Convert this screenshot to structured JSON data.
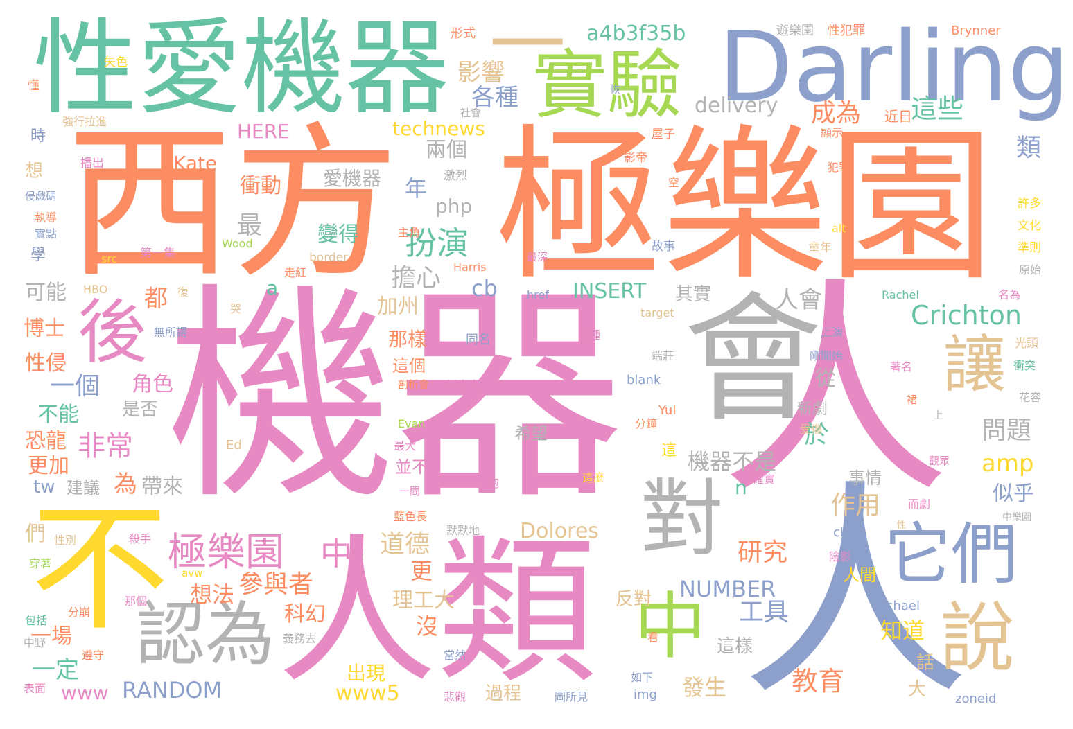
{
  "palette": {
    "green": "#66c2a5",
    "orange": "#fc8d62",
    "blue": "#8da0cb",
    "pink": "#e78ac3",
    "lime": "#a6d854",
    "yellow": "#ffd92f",
    "tan": "#e5c494",
    "gray": "#b3b3b3"
  },
  "words": {
    "w_jiqi": "機器",
    "w_ren": "人",
    "w_xifang": "西方",
    "w_jileyuan": "極樂園",
    "w_hui": "會",
    "w_xingai_jiqi": "性愛機器",
    "w_darling": "Darling",
    "w_shiyan": "實驗",
    "w_bu": "不",
    "w_renlei": "人類",
    "w_renwei": "認為",
    "w_dui": "對",
    "w_tamen": "它們",
    "w_rang": "讓",
    "w_shuo": "說",
    "w_zhong_big": "中",
    "w_hou": "後",
    "w_yi": "一",
    "w_a4b3": "a4b3f35b",
    "w_crichton": "Crichton",
    "w_jileyuan2": "極樂園",
    "w_zhong_mid": "中",
    "w_banyan": "扮演",
    "w_yingxiang": "影響",
    "w_gezhong": "各種",
    "w_chengwei": "成為",
    "w_zhexie": "這些",
    "w_delivery": "delivery",
    "w_technews": "technews",
    "w_here": "HERE",
    "w_kate": "Kate",
    "w_liangge": "兩個",
    "w_lei": "類",
    "w_aijiqi": "愛機器",
    "w_chongdong": "衝動",
    "w_nian": "年",
    "w_php": "php",
    "w_zui": "最",
    "w_biande": "變得",
    "w_danxin": "擔心",
    "w_renhui": "人會",
    "w_insert": "INSERT",
    "w_qishi": "其實",
    "w_cb": "cb",
    "w_a": "a",
    "w_dou": "都",
    "w_keneng": "可能",
    "w_jiazhou": "加州",
    "w_boshi": "博士",
    "w_xingqin": "性侵",
    "w_nayang": "那樣",
    "w_yige": "一個",
    "w_juese": "角色",
    "w_shifou": "是否",
    "w_zhege": "這個",
    "w_buneng": "不能",
    "w_feichang": "非常",
    "w_wenti": "問題",
    "w_yu": "於",
    "w_cong": "從",
    "w_xinju": "新劇",
    "w_amp": "amp",
    "w_geng_jia": "更加",
    "w_konglong": "恐龍",
    "w_wei": "為",
    "w_dailai": "帶來",
    "w_jiqibushi": "機器不是",
    "w_xiwang": "希望",
    "w_bingbu": "並不",
    "w_tw": "tw",
    "w_jianyi": "建議",
    "w_n": "n",
    "w_shiqing": "事情",
    "w_sihu": "似乎",
    "w_zuoyong": "作用",
    "w_daode": "道德",
    "w_dolores": "Dolores",
    "w_yanjiu": "研究",
    "w_men": "們",
    "w_geng": "更",
    "w_canyuzhe": "參與者",
    "w_xiangfa": "想法",
    "w_ligongda": "理工大",
    "w_number": "NUMBER",
    "w_renjian": "人間",
    "w_fandui": "反對",
    "w_kehuan": "科幻",
    "w_gongju": "工具",
    "w_mei": "沒",
    "w_zhidao": "知道",
    "w_yichang": "一場",
    "w_yiding": "一定",
    "w_zheyang": "這樣",
    "w_jiaoyu": "教育",
    "w_chuxian": "出現",
    "w_fasheng": "發生",
    "w_www": "www",
    "w_random": "RANDOM",
    "w_www5": "www5",
    "w_guocheng": "過程",
    "w_hua": "話",
    "w_da": "大",
    "w_xingshi": "形式",
    "w_shise": "失色",
    "w_dong": "懂",
    "w_yuleyuan": "遊樂園",
    "w_xingfanzui": "性犯罪",
    "w_brynner": "Brynner",
    "w_qiangxing": "強行拉進",
    "w_shehui": "社會",
    "w_hui2": "恢",
    "w_shi": "時",
    "w_jinri": "近日",
    "w_xianshi": "顯示",
    "w_wuzi": "屋子",
    "w_bochu": "播出",
    "w_xiang": "想",
    "w_qinhai": "侵戲碼",
    "w_jiliei": "激烈",
    "w_yingdi": "影帝",
    "w_fanzui": "犯罪",
    "w_kong": "空",
    "w_zhidao2": "執導",
    "w_zhujiao": "主角",
    "w_xuduo": "許多",
    "w_wenhua": "文化",
    "w_shidian": "實點",
    "w_wood": "Wood",
    "w_alt": "alt",
    "w_zhunze": "準則",
    "w_diyiji": "第一集",
    "w_gushi": "故事",
    "w_tongnian": "童年",
    "w_xue": "學",
    "w_src": "src",
    "w_zuishen": "最深",
    "w_border": "border",
    "w_harris": "Harris",
    "w_yuanshi": "原始",
    "w_zouhong": "走紅",
    "w_hbo": "HBO",
    "w_fu": "復",
    "w_href": "href",
    "w_rachel": "Rachel",
    "w_mingwei": "名為",
    "w_ku": "哭",
    "w_target": "target",
    "w_tongming": "同名",
    "w_mouzhong": "某種",
    "w_shangyan": "上演",
    "w_guangtou": "光頭",
    "w_wusuowei": "無所謂",
    "w_duanzhuang": "端莊",
    "w_gangkaishi": "剛開始",
    "w_zhuming": "著名",
    "w_chongtu": "衝突",
    "w_jiexihui": "剖析會",
    "w_heiyiren": "黑衣人",
    "w_blank": "blank",
    "w_qun": "裙",
    "w_huarong": "花容",
    "w_yul": "Yul",
    "w_shang": "上",
    "w_evan": "Evan",
    "w_fenzhong": "分鐘",
    "w_shoushang": "受傷",
    "w_zuida": "最大",
    "w_ed": "Ed",
    "w_zhe": "這",
    "w_guanzhong": "觀眾",
    "w_yijian": "一間",
    "w_yipao": "一炮",
    "w_zheme": "這麼",
    "w_queshi": "確實",
    "w_erju": "而劇",
    "w_lansechang": "藍色長",
    "w_momodi": "默默地",
    "w_xing": "性",
    "w_zhongleyuan": "中樂園",
    "w_xingbie": "性別",
    "w_shashou": "殺手",
    "w_ck": "ck",
    "w_avw": "avw",
    "w_yinying": "陰影",
    "w_chuanzhe": "穿著",
    "w_nage": "那個",
    "w_michael": "Michael",
    "w_fenbeng": "分崩",
    "w_baokuo": "包括",
    "w_yiwuqu": "義務去",
    "w_zhongye": "中野",
    "w_kan": "看",
    "w_zunshou": "遵守",
    "w_dangran": "當然",
    "w_biaomian": "表面",
    "w_beiguan": "悲觀",
    "w_ruxia": "如下",
    "w_img": "img",
    "w_tusuoshi": "圖所見",
    "w_zoneid": "zoneid"
  }
}
